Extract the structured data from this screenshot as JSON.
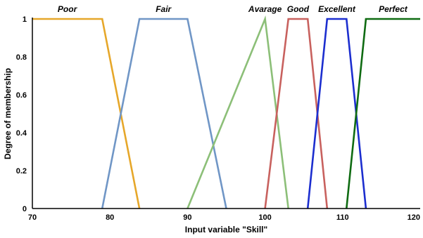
{
  "chart_data": {
    "type": "line",
    "title": "",
    "xlabel": "Input variable \"Skill\"",
    "ylabel": "Degree of membership",
    "xlim": [
      70,
      120
    ],
    "ylim": [
      0,
      1
    ],
    "x_ticks": [
      "70",
      "80",
      "90",
      "100",
      "110",
      "120"
    ],
    "y_ticks": [
      "0",
      "0.2",
      "0.4",
      "0.6",
      "0.8",
      "1"
    ],
    "grid": false,
    "series": [
      {
        "name": "Poor",
        "color": "#e6a72a",
        "points": [
          [
            70,
            1
          ],
          [
            79,
            1
          ],
          [
            83.8,
            0
          ]
        ]
      },
      {
        "name": "Fair",
        "color": "#7096c6",
        "points": [
          [
            79,
            0
          ],
          [
            83.8,
            1
          ],
          [
            90,
            1
          ],
          [
            95,
            0
          ]
        ]
      },
      {
        "name": "Avarage",
        "color": "#8cbf78",
        "points": [
          [
            90,
            0
          ],
          [
            100,
            1
          ],
          [
            103,
            0
          ]
        ]
      },
      {
        "name": "Good",
        "color": "#c8615e",
        "points": [
          [
            100,
            0
          ],
          [
            103,
            1
          ],
          [
            105.5,
            1
          ],
          [
            108,
            0
          ]
        ]
      },
      {
        "name": "Excellent",
        "color": "#1c2ecf",
        "points": [
          [
            105.5,
            0
          ],
          [
            108,
            1
          ],
          [
            110.5,
            1
          ],
          [
            113,
            0
          ]
        ]
      },
      {
        "name": "Perfect",
        "color": "#0f6b12",
        "points": [
          [
            110.5,
            0
          ],
          [
            113,
            1
          ],
          [
            120,
            1
          ]
        ]
      }
    ]
  }
}
